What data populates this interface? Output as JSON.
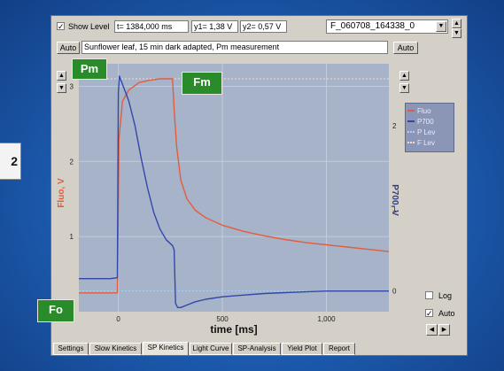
{
  "left_badge": "2",
  "header": {
    "show_level_checked": "✓",
    "show_level_label": "Show Level",
    "t_field": "t= 1384,000 ms",
    "y1_field": "y1= 1,38 V",
    "y2_field": "y2= 0,57 V",
    "file_select": "F_060708_164338_0"
  },
  "desc_row": {
    "auto_left": "Auto",
    "description": "Sunflower leaf, 15 min dark adapted, Pm measurement",
    "auto_right": "Auto"
  },
  "annotations": {
    "pm": "Pm",
    "fm": "Fm",
    "fo": "Fo"
  },
  "legend": {
    "items": [
      {
        "label": "Fluo",
        "color": "#e35d3c"
      },
      {
        "label": "P700",
        "color": "#3447a8"
      },
      {
        "label": "P Lev",
        "color": "#9fd4ff"
      },
      {
        "label": "F Lev",
        "color": "#ffd9c2"
      }
    ]
  },
  "right_controls": {
    "log_label": "Log",
    "auto_label": "Auto",
    "auto_checked": "✓"
  },
  "chart_data": {
    "type": "line",
    "xlabel": "time [ms]",
    "y1label": "Fluo, V",
    "y2label": "P700, V",
    "xlim": [
      -190,
      1300
    ],
    "x_ticks": [
      0,
      500,
      1000
    ],
    "x_tick_labels": [
      "0",
      "500",
      "1,000"
    ],
    "y1lim": [
      0,
      3.3
    ],
    "y1_ticks": [
      1,
      2,
      3
    ],
    "y1_tick_labels": [
      "1",
      "2",
      "3"
    ],
    "y2lim": [
      -0.25,
      2.75
    ],
    "y2_ticks": [
      0,
      1,
      2
    ],
    "y2_tick_labels": [
      "0",
      "1",
      "2"
    ],
    "series": [
      {
        "name": "Fluo",
        "axis": "y1",
        "x": [
          -190,
          -40,
          -5,
          -2,
          3,
          20,
          50,
          100,
          150,
          200,
          230,
          260,
          270,
          280,
          300,
          330,
          370,
          420,
          500,
          600,
          700,
          800,
          900,
          1000,
          1100,
          1200,
          1300
        ],
        "y": [
          0.25,
          0.25,
          0.25,
          1.0,
          2.3,
          2.8,
          2.95,
          3.05,
          3.08,
          3.1,
          3.1,
          3.1,
          2.6,
          2.2,
          1.75,
          1.5,
          1.35,
          1.25,
          1.15,
          1.07,
          1.01,
          0.96,
          0.92,
          0.89,
          0.86,
          0.83,
          0.8
        ]
      },
      {
        "name": "P700",
        "axis": "y2",
        "x": [
          -190,
          -40,
          -5,
          0,
          5,
          20,
          50,
          80,
          110,
          140,
          170,
          200,
          230,
          260,
          268,
          275,
          285,
          300,
          330,
          370,
          420,
          500,
          600,
          700,
          800,
          900,
          1000,
          1100,
          1200,
          1300
        ],
        "y": [
          0.15,
          0.15,
          0.16,
          2.4,
          2.6,
          2.5,
          2.3,
          2.0,
          1.6,
          1.25,
          0.95,
          0.75,
          0.62,
          0.55,
          0.5,
          -0.15,
          -0.2,
          -0.2,
          -0.17,
          -0.13,
          -0.1,
          -0.07,
          -0.05,
          -0.03,
          -0.02,
          -0.01,
          0.0,
          0.0,
          0.0,
          0.0
        ]
      }
    ],
    "level_lines": [
      {
        "name": "F Lev",
        "axis": "y1",
        "y": 3.1
      },
      {
        "name": "P Lev",
        "axis": "y2",
        "y": 0.0
      }
    ]
  },
  "tabs": [
    "Settings",
    "Slow Kinetics",
    "SP Kinetics",
    "Light Curve",
    "SP-Analysis",
    "Yield Plot",
    "Report"
  ],
  "active_tab": "SP Kinetics"
}
